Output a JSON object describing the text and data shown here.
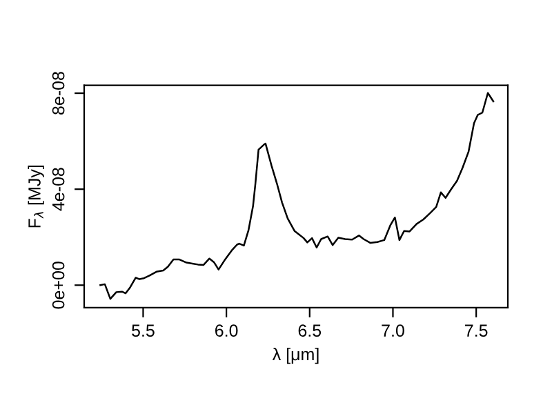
{
  "chart_data": {
    "type": "line",
    "xlabel": "λ [μm]",
    "ylabel": "F$_{λ}$ [MJy]",
    "x": [
      5.243,
      5.27,
      5.303,
      5.339,
      5.373,
      5.395,
      5.422,
      5.455,
      5.478,
      5.505,
      5.538,
      5.58,
      5.621,
      5.649,
      5.682,
      5.718,
      5.76,
      5.795,
      5.829,
      5.862,
      5.898,
      5.925,
      5.953,
      5.994,
      6.036,
      6.064,
      6.077,
      6.105,
      6.133,
      6.16,
      6.174,
      6.193,
      6.229,
      6.235,
      6.271,
      6.304,
      6.334,
      6.368,
      6.409,
      6.437,
      6.464,
      6.486,
      6.514,
      6.542,
      6.569,
      6.608,
      6.638,
      6.672,
      6.713,
      6.755,
      6.796,
      6.824,
      6.865,
      6.907,
      6.948,
      6.984,
      7.012,
      7.039,
      7.067,
      7.1,
      7.142,
      7.183,
      7.224,
      7.26,
      7.288,
      7.316,
      7.349,
      7.385,
      7.418,
      7.454,
      7.487,
      7.509,
      7.537,
      7.57,
      7.603
    ],
    "series": [
      {
        "color": "#000000",
        "values": [
          0.0,
          4e-10,
          -5.7e-09,
          -2.9e-09,
          -2.7e-09,
          -3.4e-09,
          -9e-10,
          3.1e-09,
          2.5e-09,
          2.9e-09,
          4e-09,
          5.6e-09,
          6.1e-09,
          7.7e-09,
          1.07e-08,
          1.07e-08,
          9.4e-09,
          9e-09,
          8.6e-09,
          8.4e-09,
          1.11e-08,
          9.6e-09,
          6.5e-09,
          1.09e-08,
          1.48e-08,
          1.69e-08,
          1.73e-08,
          1.65e-08,
          2.3e-08,
          3.3e-08,
          4.22e-08,
          5.65e-08,
          5.88e-08,
          5.9e-08,
          4.98e-08,
          4.22e-08,
          3.45e-08,
          2.78e-08,
          2.26e-08,
          2.11e-08,
          1.96e-08,
          1.78e-08,
          1.96e-08,
          1.57e-08,
          1.92e-08,
          2.03e-08,
          1.67e-08,
          1.98e-08,
          1.92e-08,
          1.9e-08,
          2.07e-08,
          1.92e-08,
          1.76e-08,
          1.8e-08,
          1.88e-08,
          2.49e-08,
          2.82e-08,
          1.88e-08,
          2.26e-08,
          2.24e-08,
          2.55e-08,
          2.74e-08,
          3.01e-08,
          3.26e-08,
          3.87e-08,
          3.64e-08,
          3.99e-08,
          4.35e-08,
          4.89e-08,
          5.56e-08,
          6.75e-08,
          7.09e-08,
          7.19e-08,
          8.01e-08,
          7.66e-08
        ]
      }
    ],
    "xlim": [
      5.146,
      7.69
    ],
    "xticks": [
      5.5,
      {
        "value": 6,
        "label": "6.0"
      },
      6.5,
      {
        "value": 7,
        "label": "7.0"
      },
      7.5
    ],
    "ylim": [
      -9.4e-09,
      8.33e-08
    ],
    "yticks": [
      {
        "value": 0,
        "label": "0e+00"
      },
      {
        "value": 4e-08,
        "label": "4e-08"
      },
      {
        "value": 8e-08,
        "label": "8e-08"
      }
    ],
    "marker": "none",
    "line_style": "solid"
  }
}
